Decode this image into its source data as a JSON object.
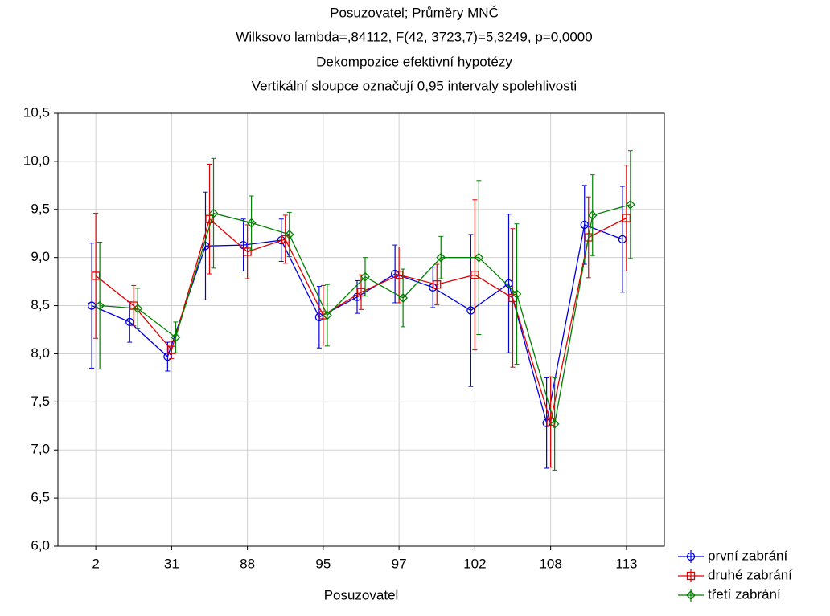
{
  "chart_data": {
    "type": "errorbar-line",
    "title": "Posuzovatel; Průměry MNČ",
    "subtitle": "Wilksovo lambda=,84112, F(42, 3723,7)=5,3249, p=0,0000",
    "annotations": [
      "Dekompozice efektivní hypotézy",
      "Vertikální sloupce označují 0,95 intervaly spolehlivosti"
    ],
    "x_label": "Posuzovatel",
    "categories": [
      "2",
      null,
      "31",
      null,
      "88",
      null,
      "95",
      null,
      "97",
      null,
      "102",
      null,
      "108",
      null,
      "113"
    ],
    "ylim": [
      6.0,
      10.5
    ],
    "yticks": [
      {
        "value": 6.0,
        "label": "6,0"
      },
      {
        "value": 6.5,
        "label": "6,5"
      },
      {
        "value": 7.0,
        "label": "7,0"
      },
      {
        "value": 7.5,
        "label": "7,5"
      },
      {
        "value": 8.0,
        "label": "8,0"
      },
      {
        "value": 8.5,
        "label": "8,5"
      },
      {
        "value": 9.0,
        "label": "9,0"
      },
      {
        "value": 9.5,
        "label": "9,5"
      },
      {
        "value": 10.0,
        "label": "10,0"
      },
      {
        "value": 10.5,
        "label": "10,5"
      }
    ],
    "grid": true,
    "legend": "bottom-right",
    "series": [
      {
        "name": "první zabrání",
        "color": "#0000dd",
        "marker": "circle",
        "values": [
          8.5,
          8.33,
          7.97,
          9.12,
          9.13,
          9.18,
          8.38,
          8.59,
          8.83,
          8.69,
          8.45,
          8.73,
          7.28,
          9.34,
          9.19
        ],
        "errors": [
          0.65,
          0.21,
          0.15,
          0.56,
          0.27,
          0.22,
          0.32,
          0.17,
          0.3,
          0.21,
          0.79,
          0.72,
          0.47,
          0.41,
          0.55
        ]
      },
      {
        "name": "druhé zabrání",
        "color": "#e00000",
        "marker": "square",
        "values": [
          8.81,
          8.5,
          8.04,
          9.4,
          9.06,
          9.19,
          8.4,
          8.64,
          8.82,
          8.72,
          8.82,
          8.58,
          7.29,
          9.21,
          9.41
        ],
        "errors": [
          0.65,
          0.21,
          0.09,
          0.57,
          0.28,
          0.25,
          0.31,
          0.18,
          0.29,
          0.21,
          0.78,
          0.72,
          0.47,
          0.42,
          0.55
        ]
      },
      {
        "name": "třetí zabrání",
        "color": "#008000",
        "marker": "diamond",
        "values": [
          8.5,
          8.47,
          8.17,
          9.46,
          9.36,
          9.24,
          8.4,
          8.8,
          8.58,
          9.0,
          9.0,
          8.62,
          7.27,
          9.44,
          9.55
        ],
        "errors": [
          0.66,
          0.21,
          0.16,
          0.57,
          0.28,
          0.23,
          0.32,
          0.2,
          0.3,
          0.22,
          0.8,
          0.73,
          0.48,
          0.42,
          0.56
        ]
      }
    ]
  }
}
